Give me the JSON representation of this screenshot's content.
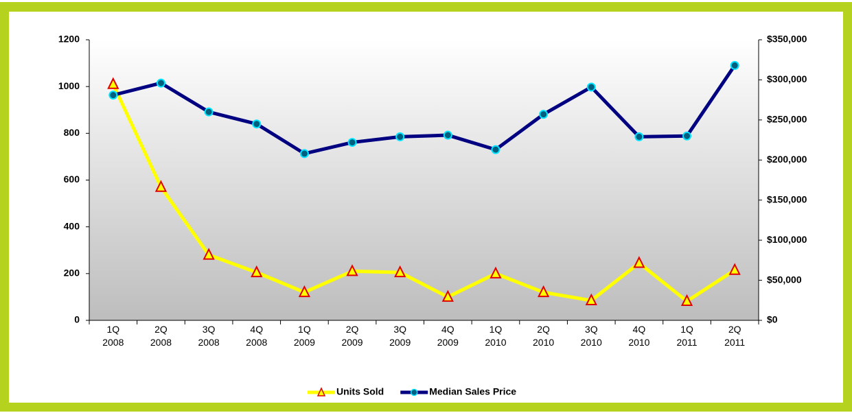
{
  "chart_data": {
    "type": "line",
    "categories": [
      "1Q 2008",
      "2Q 2008",
      "3Q 2008",
      "4Q 2008",
      "1Q 2009",
      "2Q 2009",
      "3Q 2009",
      "4Q 2009",
      "1Q 2010",
      "2Q 2010",
      "3Q 2010",
      "4Q 2010",
      "1Q 2011",
      "2Q 2011"
    ],
    "series": [
      {
        "name": "Units Sold",
        "color": "#ffff00",
        "marker": "triangle",
        "marker_edge": "#e00000",
        "axis": "y",
        "values": [
          1010,
          570,
          280,
          205,
          120,
          210,
          205,
          100,
          200,
          120,
          85,
          245,
          82,
          215
        ]
      },
      {
        "name": "Median Sales Price",
        "color": "#000080",
        "marker": "circle",
        "marker_fill": "#005f7f",
        "marker_edge": "#00e5ff",
        "axis": "y2",
        "values": [
          281000,
          296000,
          260000,
          245000,
          208000,
          222000,
          229000,
          231000,
          213000,
          257000,
          291000,
          229000,
          230000,
          318000
        ]
      }
    ],
    "ylim": [
      0,
      1200
    ],
    "yticks": [
      0,
      200,
      400,
      600,
      800,
      1000,
      1200
    ],
    "y2lim": [
      0,
      350000
    ],
    "y2ticks": [
      {
        "value": 0,
        "label": "$0"
      },
      {
        "value": 50000,
        "label": "$50,000"
      },
      {
        "value": 100000,
        "label": "$100,000"
      },
      {
        "value": 150000,
        "label": "$150,000"
      },
      {
        "value": 200000,
        "label": "$200,000"
      },
      {
        "value": 250000,
        "label": "$250,000"
      },
      {
        "value": 300000,
        "label": "$300,000"
      },
      {
        "value": 350000,
        "label": "$350,000"
      }
    ],
    "legend": "bottom"
  }
}
